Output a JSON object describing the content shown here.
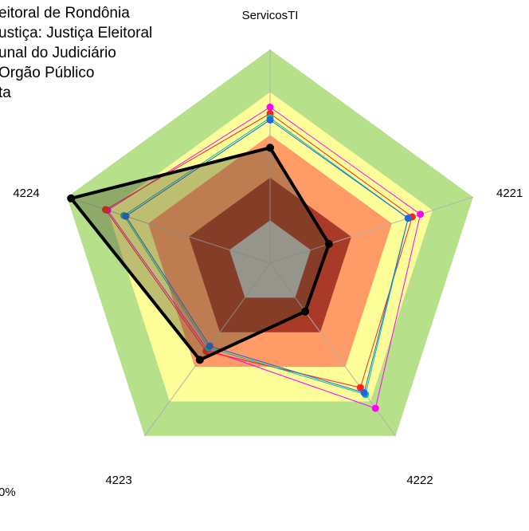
{
  "legend": {
    "items": [
      "eitoral de Rondônia",
      "ustiça: Justiça Eleitoral",
      "unal do Judiciário",
      "Orgão Público",
      "ta"
    ]
  },
  "footer_text": "0%",
  "chart_data": {
    "type": "radar",
    "axes": [
      "ServicosTI",
      "4221",
      "4222",
      "4223",
      "4224"
    ],
    "range": [
      0,
      100
    ],
    "bands": [
      {
        "from": 0,
        "to": 20,
        "color": "#c0c0c0"
      },
      {
        "from": 20,
        "to": 40,
        "color": "#a83a27"
      },
      {
        "from": 40,
        "to": 60,
        "color": "#ff9b66"
      },
      {
        "from": 60,
        "to": 80,
        "color": "#ffff99"
      },
      {
        "from": 80,
        "to": 100,
        "color": "#b6e08a"
      }
    ],
    "series": [
      {
        "color": "#000000",
        "values": [
          54,
          29,
          28,
          56,
          98
        ]
      },
      {
        "color": "#ff00ff",
        "values": [
          73,
          74,
          84,
          50,
          80
        ]
      },
      {
        "color": "#ff2020",
        "values": [
          70,
          70,
          72,
          51,
          81
        ]
      },
      {
        "color": "#00c0a0",
        "values": [
          68,
          68,
          76,
          49,
          72
        ]
      },
      {
        "color": "#1f66e0",
        "values": [
          67,
          68,
          75,
          48,
          71
        ]
      }
    ]
  }
}
